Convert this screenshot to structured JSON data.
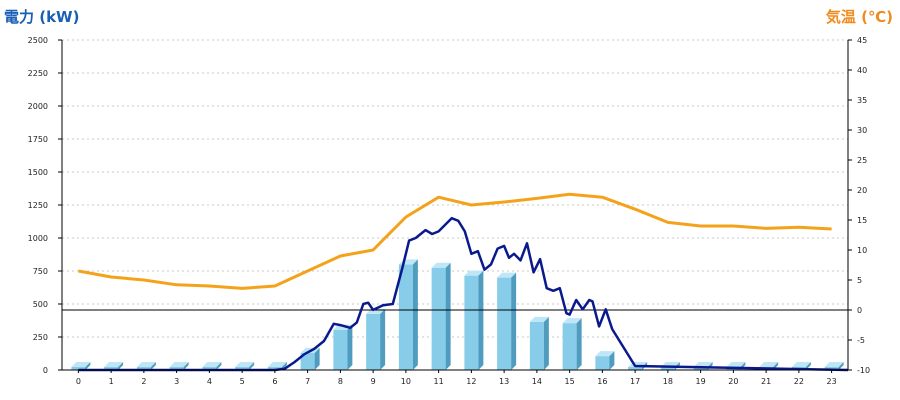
{
  "chart_data": {
    "type": "bar",
    "ylabel": "電力 (kW)",
    "ylabel_right": "気温 (℃)",
    "categories": [
      "0",
      "1",
      "2",
      "3",
      "4",
      "5",
      "6",
      "7",
      "8",
      "9",
      "10",
      "11",
      "12",
      "13",
      "14",
      "15",
      "16",
      "17",
      "18",
      "19",
      "20",
      "21",
      "22",
      "23"
    ],
    "ylim": [
      0,
      2500
    ],
    "y_ticks": [
      0,
      250,
      500,
      750,
      1000,
      1250,
      1500,
      1750,
      2000,
      2250,
      2500
    ],
    "y2lim": [
      -10,
      45
    ],
    "y2_ticks": [
      -10,
      -5,
      0,
      5,
      10,
      15,
      20,
      25,
      30,
      35,
      40,
      45
    ],
    "grid": true,
    "colors": {
      "bar": "#87cdea",
      "bar_side": "#4f9cbf",
      "bar_top": "#bfe6f6",
      "power_line": "#0a1a8c",
      "temp_line": "#f5a21b",
      "left_axis_label": "#1a5fb4",
      "right_axis_label": "#f08c1e"
    },
    "series": [
      {
        "kind": "bar",
        "axis": "left",
        "values": [
          0,
          0,
          0,
          0,
          0,
          0,
          0,
          130,
          305,
          425,
          800,
          775,
          715,
          700,
          365,
          355,
          105,
          0,
          0,
          0,
          0,
          0,
          0,
          0
        ]
      },
      {
        "kind": "line",
        "axis": "left",
        "x": [
          0,
          6,
          6.3,
          6.6,
          6.9,
          7.2,
          7.5,
          7.8,
          8.0,
          8.3,
          8.5,
          8.7,
          8.85,
          9.0,
          9.3,
          9.6,
          9.9,
          10.1,
          10.3,
          10.6,
          10.8,
          11.0,
          11.2,
          11.4,
          11.6,
          11.8,
          12.0,
          12.2,
          12.4,
          12.6,
          12.8,
          13.0,
          13.15,
          13.3,
          13.5,
          13.7,
          13.9,
          14.1,
          14.3,
          14.5,
          14.7,
          14.9,
          15.0,
          15.2,
          15.4,
          15.6,
          15.7,
          15.9,
          16.1,
          16.3,
          17,
          23.5
        ],
        "values": [
          0,
          0,
          10,
          60,
          120,
          160,
          220,
          350,
          340,
          320,
          360,
          500,
          510,
          455,
          490,
          500,
          780,
          980,
          1000,
          1060,
          1030,
          1050,
          1100,
          1150,
          1130,
          1050,
          880,
          900,
          760,
          800,
          920,
          940,
          850,
          880,
          830,
          960,
          740,
          840,
          620,
          600,
          620,
          430,
          420,
          530,
          460,
          530,
          520,
          330,
          460,
          310,
          30,
          0
        ]
      },
      {
        "kind": "line",
        "axis": "right",
        "x": [
          0,
          1,
          2,
          3,
          4,
          5,
          6,
          7,
          8,
          9,
          10,
          11,
          12,
          13,
          14,
          15,
          16,
          17,
          18,
          19,
          20,
          21,
          22,
          23
        ],
        "values": [
          6.5,
          5.5,
          5,
          4.2,
          4,
          3.6,
          4,
          6.5,
          9,
          10,
          15.5,
          18.8,
          17.5,
          18,
          18.6,
          19.3,
          18.8,
          16.8,
          14.6,
          14,
          14,
          13.6,
          13.8,
          13.5
        ]
      }
    ]
  }
}
